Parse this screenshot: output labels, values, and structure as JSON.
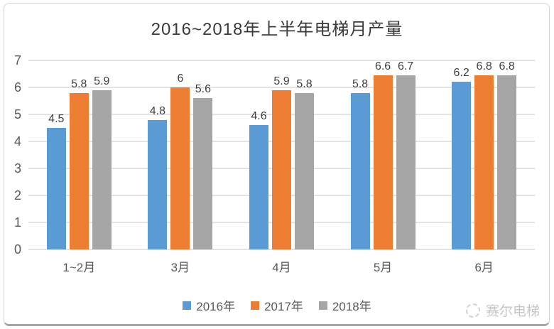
{
  "chart_data": {
    "type": "bar",
    "title": "2016~2018年上半年电梯月产量",
    "categories": [
      "1~2月",
      "3月",
      "4月",
      "5月",
      "6月"
    ],
    "series": [
      {
        "name": "2016年",
        "color": "#5B9BD5",
        "values": [
          4.5,
          4.8,
          4.6,
          5.8,
          6.2
        ]
      },
      {
        "name": "2017年",
        "color": "#ED7D31",
        "values": [
          5.8,
          6,
          5.9,
          6.6,
          6.8
        ]
      },
      {
        "name": "2018年",
        "color": "#A5A5A5",
        "values": [
          5.9,
          5.6,
          5.8,
          6.7,
          6.8
        ]
      }
    ],
    "y_ticks": [
      0,
      1,
      2,
      3,
      4,
      5,
      6,
      7
    ],
    "ylim": [
      0,
      7
    ],
    "xlabel": "",
    "ylabel": "",
    "grid": true,
    "legend_position": "bottom",
    "data_labels": true,
    "colors": {
      "gridline": "#e3e3e3",
      "axis_label": "#595959",
      "data_label": "#3f3f3f",
      "title": "#3b3b3b"
    }
  },
  "watermark": {
    "text": "赛尔电梯",
    "logo": "circle-logo"
  }
}
